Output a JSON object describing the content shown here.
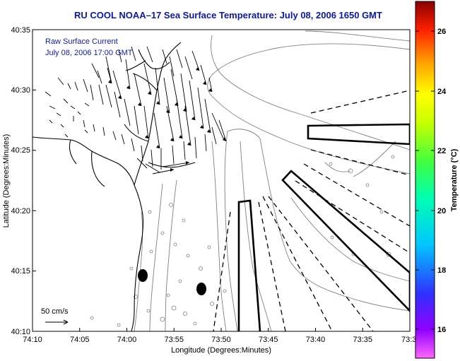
{
  "title": "RU COOL  NOAA–17  Sea Surface Temperature:  July 08, 2006 1650 GMT",
  "legend": {
    "line1": "Raw Surface Current",
    "line2": "July 08, 2006 17:00 GMT"
  },
  "scale_label": "50 cm/s",
  "axes": {
    "xlabel": "Longitude (Degrees:Minutes)",
    "ylabel": "Latitude (Degrees:Minutes)",
    "x_ticks": [
      "74:10",
      "74:05",
      "74:00",
      "73:55",
      "73:50",
      "73:45",
      "73:40",
      "73:35",
      "73:3"
    ],
    "y_ticks": [
      "40:35",
      "40:30",
      "40:25",
      "40:20",
      "40:15",
      "40:10"
    ]
  },
  "colorbar": {
    "label": "Temperature (°C)",
    "ticks": [
      "26",
      "24",
      "22",
      "20",
      "18",
      "16"
    ],
    "range": [
      15,
      27
    ]
  },
  "colors": {
    "title": "#0a1aa0",
    "legend_text": "#1020a0",
    "map_lines": "#000000",
    "contours": "#808080"
  }
}
